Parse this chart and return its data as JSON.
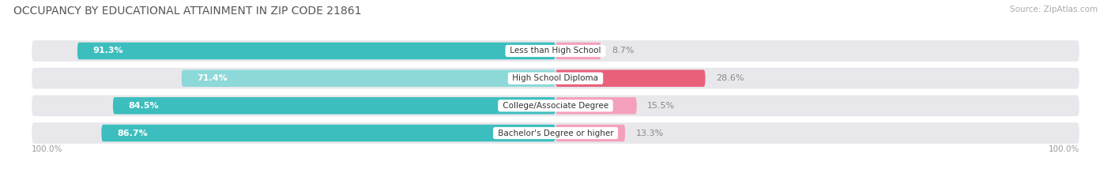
{
  "title": "OCCUPANCY BY EDUCATIONAL ATTAINMENT IN ZIP CODE 21861",
  "source": "Source: ZipAtlas.com",
  "categories": [
    "Less than High School",
    "High School Diploma",
    "College/Associate Degree",
    "Bachelor's Degree or higher"
  ],
  "owner_values": [
    91.3,
    71.4,
    84.5,
    86.7
  ],
  "renter_values": [
    8.7,
    28.6,
    15.5,
    13.3
  ],
  "owner_colors": [
    "#3dbebe",
    "#8dd8d8",
    "#3dbebe",
    "#3dbebe"
  ],
  "renter_colors": [
    "#f5a0bb",
    "#e8607a",
    "#f5a0bb",
    "#f5a0bb"
  ],
  "bar_bg_color": "#e8e8ec",
  "background_color": "#ffffff",
  "title_fontsize": 10,
  "label_fontsize": 8,
  "tick_fontsize": 7.5,
  "legend_fontsize": 8,
  "x_left_label": "100.0%",
  "x_right_label": "100.0%"
}
